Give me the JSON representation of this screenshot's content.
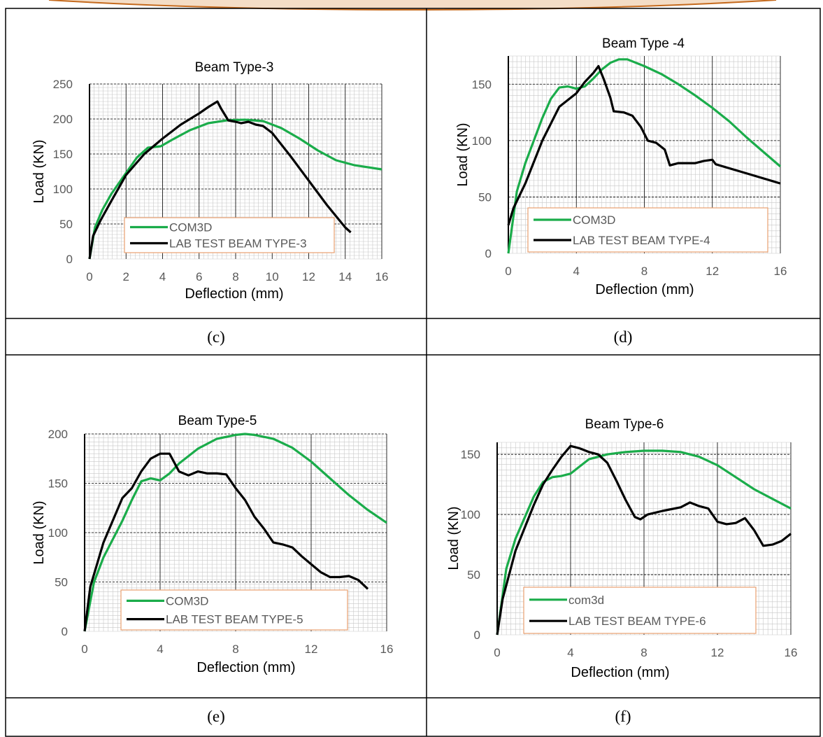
{
  "captions": [
    "(c)",
    "(d)",
    "(e)",
    "(f)"
  ],
  "colors": {
    "green": "#1aac4a",
    "black": "#000000",
    "legend_border": "#e8a070",
    "grid_major": "#000000",
    "grid_minor": "#c8c8c8",
    "decor": "#c56a1d"
  },
  "chart_data": [
    {
      "type": "line",
      "title": "Beam Type-3",
      "xlabel": "Deflection (mm)",
      "ylabel": "Load (KN)",
      "xlim": [
        0,
        16
      ],
      "ylim": [
        0,
        250
      ],
      "xticks": [
        0,
        2,
        4,
        6,
        8,
        10,
        12,
        14,
        16
      ],
      "yticks": [
        0,
        50,
        100,
        150,
        200,
        250
      ],
      "legend_position": "bottom-left",
      "series": [
        {
          "name": "COM3D",
          "color": "#1aac4a",
          "x": [
            0,
            0.3,
            0.7,
            1.2,
            2,
            2.6,
            3.2,
            3.9,
            4.5,
            5.5,
            6.5,
            7.5,
            8.5,
            9.5,
            10.5,
            11.5,
            12.5,
            13.5,
            14.5,
            15.5,
            16
          ],
          "y": [
            0,
            45,
            70,
            93,
            123,
            145,
            159,
            161,
            170,
            184,
            194,
            198,
            199,
            197,
            187,
            172,
            155,
            141,
            134,
            130,
            128
          ]
        },
        {
          "name": "LAB TEST BEAM TYPE-3",
          "color": "#000000",
          "x": [
            0,
            0.2,
            0.6,
            1.2,
            2,
            3,
            4,
            5,
            6,
            6.5,
            7,
            7.2,
            7.6,
            8,
            8.3,
            8.7,
            9.1,
            9.5,
            10,
            11,
            12,
            13,
            14,
            14.3
          ],
          "y": [
            0,
            33,
            55,
            83,
            120,
            150,
            172,
            192,
            208,
            217,
            225,
            215,
            198,
            196,
            194,
            196,
            192,
            190,
            180,
            147,
            112,
            77,
            45,
            38
          ]
        }
      ]
    },
    {
      "type": "line",
      "title": "Beam Type -4",
      "xlabel": "Deflection (mm)",
      "ylabel": "Load (KN)",
      "xlim": [
        0,
        16
      ],
      "ylim": [
        0,
        175
      ],
      "xticks": [
        0,
        4,
        8,
        12,
        16
      ],
      "yticks": [
        0,
        50,
        100,
        150
      ],
      "legend_position": "bottom-left",
      "series": [
        {
          "name": "COM3D",
          "color": "#1aac4a",
          "x": [
            0,
            0.5,
            1,
            2,
            2.5,
            3,
            3.5,
            4,
            4.5,
            5,
            5.5,
            6,
            6.5,
            7,
            8,
            9,
            10,
            11,
            12,
            13,
            14,
            15,
            16
          ],
          "y": [
            0,
            55,
            80,
            120,
            137,
            147,
            148,
            146,
            148,
            155,
            163,
            169,
            172,
            172,
            166,
            159,
            150,
            140,
            129,
            117,
            103,
            90,
            77
          ]
        },
        {
          "name": "LAB TEST BEAM TYPE-4",
          "color": "#000000",
          "x": [
            0,
            0.3,
            1,
            2,
            3,
            4,
            4.5,
            5,
            5.3,
            5.6,
            6,
            6.2,
            6.8,
            7.3,
            7.8,
            8.2,
            8.7,
            9.2,
            9.5,
            10,
            11,
            11.5,
            12,
            12.2,
            14,
            16
          ],
          "y": [
            25,
            40,
            62,
            100,
            130,
            142,
            152,
            160,
            166,
            155,
            138,
            126,
            125,
            122,
            112,
            100,
            98,
            92,
            78,
            80,
            80,
            82,
            83,
            79,
            71,
            62
          ]
        }
      ]
    },
    {
      "type": "line",
      "title": "Beam Type-5",
      "xlabel": "Deflection (mm)",
      "ylabel": "Load (KN)",
      "xlim": [
        0,
        16
      ],
      "ylim": [
        0,
        200
      ],
      "xticks": [
        0,
        4,
        8,
        12,
        16
      ],
      "yticks": [
        0,
        50,
        100,
        150,
        200
      ],
      "legend_position": "bottom-left",
      "series": [
        {
          "name": "COM3D",
          "color": "#1aac4a",
          "x": [
            0,
            0.5,
            1,
            2,
            2.5,
            3,
            3.5,
            4,
            4.5,
            5,
            6,
            7,
            8,
            8.5,
            9,
            10,
            11,
            12,
            13,
            14,
            15,
            16
          ],
          "y": [
            0,
            50,
            75,
            112,
            133,
            152,
            155,
            153,
            160,
            170,
            185,
            195,
            199,
            200,
            199,
            195,
            186,
            172,
            155,
            138,
            123,
            110
          ]
        },
        {
          "name": "LAB TEST BEAM TYPE-5",
          "color": "#000000",
          "x": [
            0,
            0.3,
            1,
            2,
            2.5,
            3,
            3.5,
            4,
            4.5,
            5,
            5.5,
            6,
            6.5,
            7,
            7.5,
            8,
            8.5,
            9,
            9.5,
            10,
            10.5,
            11,
            11.5,
            12,
            12.5,
            13,
            13.5,
            14,
            14.5,
            15
          ],
          "y": [
            0,
            45,
            90,
            135,
            145,
            162,
            175,
            180,
            180,
            162,
            158,
            162,
            160,
            160,
            159,
            145,
            133,
            116,
            104,
            90,
            88,
            85,
            76,
            68,
            60,
            55,
            55,
            56,
            52,
            43
          ]
        }
      ]
    },
    {
      "type": "line",
      "title": "Beam Type-6",
      "xlabel": "Deflection (mm)",
      "ylabel": "Load (KN)",
      "xlim": [
        0,
        16
      ],
      "ylim": [
        0,
        160
      ],
      "xticks": [
        0,
        4,
        8,
        12,
        16
      ],
      "yticks": [
        0,
        50,
        100,
        150
      ],
      "legend_position": "bottom-left",
      "series": [
        {
          "name": "com3d",
          "color": "#1aac4a",
          "x": [
            0,
            0.5,
            1,
            2,
            2.5,
            3,
            3.5,
            4,
            4.5,
            5,
            6,
            7,
            8,
            9,
            10,
            11,
            12,
            13,
            14,
            15,
            16
          ],
          "y": [
            0,
            55,
            80,
            115,
            127,
            131,
            132,
            134,
            140,
            146,
            150,
            152,
            153,
            153,
            152,
            148,
            141,
            131,
            121,
            113,
            105
          ]
        },
        {
          "name": "LAB TEST BEAM TYPE-6",
          "color": "#000000",
          "x": [
            0,
            0.3,
            1,
            2,
            2.5,
            3,
            3.5,
            4,
            4.5,
            5,
            5.5,
            6,
            6.5,
            7,
            7.5,
            7.8,
            8.2,
            9,
            10,
            10.5,
            11,
            11.5,
            12,
            12.5,
            13,
            13.5,
            14,
            14.5,
            15,
            15.5,
            16
          ],
          "y": [
            0,
            30,
            70,
            108,
            125,
            137,
            148,
            157,
            155,
            152,
            150,
            143,
            128,
            112,
            98,
            96,
            100,
            103,
            106,
            110,
            107,
            105,
            94,
            92,
            93,
            97,
            87,
            74,
            75,
            78,
            84
          ]
        }
      ]
    }
  ]
}
